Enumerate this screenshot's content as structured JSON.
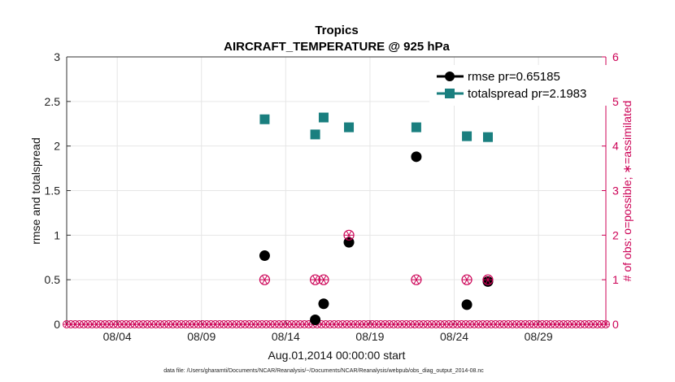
{
  "chart_data": {
    "type": "scatter",
    "title": "Tropics",
    "subtitle": "AIRCRAFT_TEMPERATURE @ 925 hPa",
    "xlabel": "Aug.01,2014 00:00:00 start",
    "ylabel": "rmse and totalspread",
    "y2label": "# of obs: o=possible; ∗=assimilated",
    "xlim": [
      0,
      32
    ],
    "ylim": [
      0,
      3
    ],
    "y2lim": [
      0,
      6
    ],
    "x_ticks": [
      {
        "value": 3,
        "label": "08/04"
      },
      {
        "value": 8,
        "label": "08/09"
      },
      {
        "value": 13,
        "label": "08/14"
      },
      {
        "value": 18,
        "label": "08/19"
      },
      {
        "value": 23,
        "label": "08/24"
      },
      {
        "value": 28,
        "label": "08/29"
      }
    ],
    "y_ticks": [
      0,
      0.5,
      1,
      1.5,
      2,
      2.5,
      3
    ],
    "y_tick_labels": [
      "0",
      "0.5",
      "1",
      "1.5",
      "2",
      "2.5",
      "3"
    ],
    "y2_ticks": [
      0,
      1,
      2,
      3,
      4,
      5,
      6
    ],
    "y2_tick_labels": [
      "0",
      "1",
      "2",
      "3",
      "4",
      "5",
      "6"
    ],
    "grid": true,
    "legend_position": "top-right",
    "series": [
      {
        "name": "rmse pr=0.65185",
        "color": "#000000",
        "marker": "circle",
        "x": [
          11.75,
          14.75,
          15.25,
          16.75,
          20.75,
          23.75,
          25.0
        ],
        "y": [
          0.77,
          0.05,
          0.23,
          0.92,
          1.88,
          0.22,
          0.48
        ]
      },
      {
        "name": "totalspread pr=2.1983",
        "color": "#1a7f7f",
        "marker": "square",
        "x": [
          11.75,
          14.75,
          15.25,
          16.75,
          20.75,
          23.75,
          25.0
        ],
        "y": [
          2.3,
          2.13,
          2.32,
          2.21,
          2.21,
          2.11,
          2.1
        ]
      },
      {
        "name": "obs possible",
        "axis": "right",
        "color": "#cc0055",
        "marker": "circle-open",
        "x": [
          11.75,
          14.75,
          15.25,
          16.75,
          20.75,
          23.75,
          25.0
        ],
        "y": [
          1,
          1,
          1,
          2,
          1,
          1,
          1
        ]
      },
      {
        "name": "obs assimilated",
        "axis": "right",
        "color": "#cc0055",
        "marker": "asterisk",
        "x": [
          11.75,
          14.75,
          15.25,
          16.75,
          20.75,
          23.75,
          25.0
        ],
        "y": [
          1,
          1,
          1,
          2,
          1,
          1,
          1
        ]
      }
    ],
    "zero_row_count": 128
  },
  "footer": "data file: /Users/gharamti/Documents/NCAR/Reanalysis/~/Documents/NCAR/Reanalysis/webpub/obs_diag_output_2014-08.nc",
  "colors": {
    "right_axis": "#cc0055",
    "spread": "#1a7f7f",
    "rmse": "#000000",
    "grid": "#e6e6e6"
  }
}
